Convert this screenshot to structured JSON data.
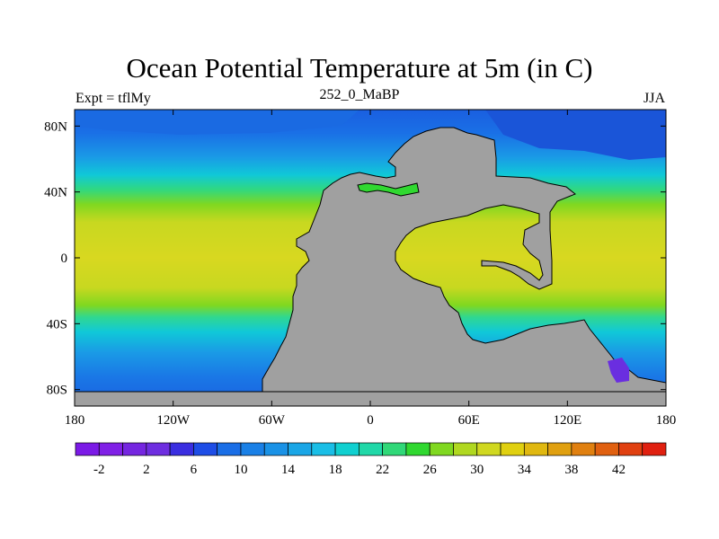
{
  "title": "Ocean Potential Temperature at 5m (in C)",
  "left_label": "Expt = tflMy",
  "center_label": "252_0_MaBP",
  "right_label": "JJA",
  "colors": {
    "land": "#a0a0a0",
    "coast": "#000000"
  },
  "map": {
    "lon_range": [
      -180,
      180
    ],
    "lat_range": [
      -90,
      90
    ],
    "x_ticks": [
      {
        "value": -180,
        "label": "180"
      },
      {
        "value": -120,
        "label": "120W"
      },
      {
        "value": -60,
        "label": "60W"
      },
      {
        "value": 0,
        "label": "0"
      },
      {
        "value": 60,
        "label": "60E"
      },
      {
        "value": 120,
        "label": "120E"
      },
      {
        "value": 180,
        "label": "180"
      }
    ],
    "y_ticks": [
      {
        "value": 80,
        "label": "80N"
      },
      {
        "value": 40,
        "label": "40N"
      },
      {
        "value": 0,
        "label": "0"
      },
      {
        "value": -40,
        "label": "40S"
      },
      {
        "value": -80,
        "label": "80S"
      }
    ]
  },
  "colorbar": {
    "colors": [
      "#7b1ae6",
      "#8020e6",
      "#7526e0",
      "#6e2ee0",
      "#3a2ee0",
      "#1e4de6",
      "#1a6ee6",
      "#1a80e6",
      "#1a92e6",
      "#1aa6e6",
      "#1abee6",
      "#10d0d0",
      "#20d8a8",
      "#30d878",
      "#30d830",
      "#80d820",
      "#b0d820",
      "#d0d820",
      "#e0d010",
      "#e0b810",
      "#e0a010",
      "#e08010",
      "#e06010",
      "#e04010",
      "#e02010"
    ],
    "labels": [
      {
        "index": 1,
        "label": "-2"
      },
      {
        "index": 3,
        "label": "2"
      },
      {
        "index": 5,
        "label": "6"
      },
      {
        "index": 7,
        "label": "10"
      },
      {
        "index": 9,
        "label": "14"
      },
      {
        "index": 11,
        "label": "18"
      },
      {
        "index": 13,
        "label": "22"
      },
      {
        "index": 15,
        "label": "26"
      },
      {
        "index": 17,
        "label": "30"
      },
      {
        "index": 19,
        "label": "34"
      },
      {
        "index": 21,
        "label": "38"
      },
      {
        "index": 23,
        "label": "42"
      }
    ]
  }
}
